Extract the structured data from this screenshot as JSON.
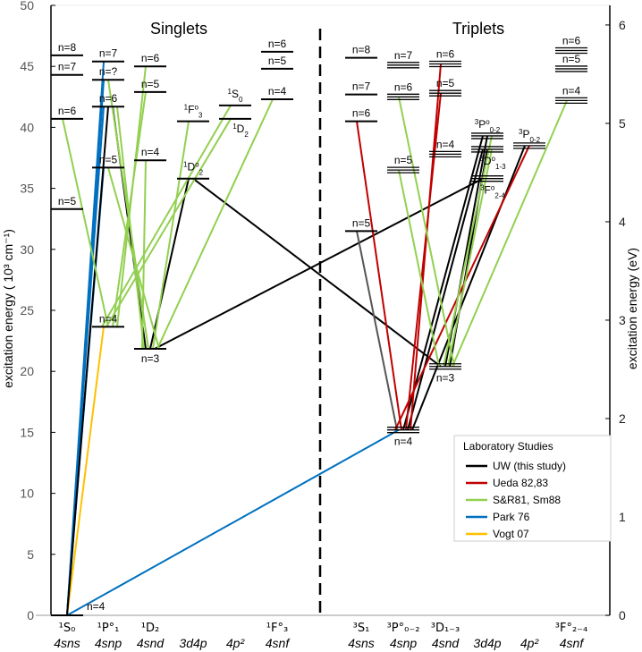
{
  "chart_data": {
    "type": "grotrian-diagram",
    "titles": {
      "singlets": "Singlets",
      "triplets": "Triplets"
    },
    "ylabel_left": "excitation energy ( 10³ cm⁻¹)",
    "ylabel_right": "excitation energy (eV)",
    "ylim_left": [
      0,
      50
    ],
    "yticks_left": [
      0,
      5,
      10,
      15,
      20,
      25,
      30,
      35,
      40,
      45,
      50
    ],
    "yticks_right": [
      0,
      1,
      2,
      3,
      4,
      5,
      6
    ],
    "columns": [
      {
        "id": "s_sns",
        "config": "4sns",
        "term": "¹S₀",
        "term_parts": [
          "1",
          "S",
          "",
          "0"
        ]
      },
      {
        "id": "s_snp",
        "config": "4snp",
        "term": "¹P°₁",
        "term_parts": [
          "1",
          "P",
          "o",
          "1"
        ]
      },
      {
        "id": "s_snd",
        "config": "4snd",
        "term": "¹D₂",
        "term_parts": [
          "1",
          "D",
          "",
          "2"
        ]
      },
      {
        "id": "s_d4p",
        "config": "3d4p",
        "term": "",
        "term_parts": [
          "",
          "",
          "",
          ""
        ]
      },
      {
        "id": "s_p2",
        "config": "4p²",
        "term": "",
        "term_parts": [
          "",
          "",
          "",
          ""
        ]
      },
      {
        "id": "s_snf",
        "config": "4snf",
        "term": "¹F°₃",
        "term_parts": [
          "1",
          "F",
          "o",
          "3"
        ]
      },
      {
        "id": "t_sns",
        "config": "4sns",
        "term": "³S₁",
        "term_parts": [
          "3",
          "S",
          "",
          "1"
        ]
      },
      {
        "id": "t_snp",
        "config": "4snp",
        "term": "³P°₀₋₂",
        "term_parts": [
          "3",
          "P",
          "o",
          "0-2"
        ]
      },
      {
        "id": "t_snd",
        "config": "4snd",
        "term": "³D₁₋₃",
        "term_parts": [
          "3",
          "D",
          "",
          "1-3"
        ]
      },
      {
        "id": "t_d4p",
        "config": "3d4p",
        "term": "",
        "term_parts": [
          "",
          "",
          "",
          ""
        ]
      },
      {
        "id": "t_p2",
        "config": "4p²",
        "term": "",
        "term_parts": [
          "",
          "",
          "",
          ""
        ]
      },
      {
        "id": "t_snf",
        "config": "4snf",
        "term": "³F°₂₋₄",
        "term_parts": [
          "3",
          "F",
          "o",
          "2-4"
        ]
      }
    ],
    "levels": [
      {
        "id": "s_sns_4",
        "col": "s_sns",
        "energy": 0,
        "label": "n=4",
        "pos": "right"
      },
      {
        "id": "s_sns_5",
        "col": "s_sns",
        "energy": 33.3,
        "label": "n=5"
      },
      {
        "id": "s_sns_6",
        "col": "s_sns",
        "energy": 40.7,
        "label": "n=6"
      },
      {
        "id": "s_sns_7",
        "col": "s_sns",
        "energy": 44.3,
        "label": "n=7"
      },
      {
        "id": "s_sns_8",
        "col": "s_sns",
        "energy": 45.9,
        "label": "n=8"
      },
      {
        "id": "s_snp_4",
        "col": "s_snp",
        "energy": 23.65,
        "label": "n=4"
      },
      {
        "id": "s_snp_5",
        "col": "s_snp",
        "energy": 36.7,
        "label": "n=5"
      },
      {
        "id": "s_snp_6",
        "col": "s_snp",
        "energy": 41.7,
        "label": "n=6"
      },
      {
        "id": "s_snp_q",
        "col": "s_snp",
        "energy": 43.9,
        "label": "n=?"
      },
      {
        "id": "s_snp_7",
        "col": "s_snp",
        "energy": 45.4,
        "label": "n=7"
      },
      {
        "id": "s_snd_3",
        "col": "s_snd",
        "energy": 21.85,
        "label": "n=3",
        "pos": "below"
      },
      {
        "id": "s_snd_4",
        "col": "s_snd",
        "energy": 37.3,
        "label": "n=4"
      },
      {
        "id": "s_snd_5",
        "col": "s_snd",
        "energy": 42.9,
        "label": "n=5"
      },
      {
        "id": "s_snd_6",
        "col": "s_snd",
        "energy": 45.0,
        "label": "n=6"
      },
      {
        "id": "s_d4p_1F",
        "col": "s_d4p",
        "energy": 40.5,
        "label": "",
        "term_parts": [
          "1",
          "F",
          "o",
          "3"
        ]
      },
      {
        "id": "s_d4p_1D",
        "col": "s_d4p",
        "energy": 35.8,
        "label": "",
        "term_parts": [
          "1",
          "D",
          "o",
          "2"
        ]
      },
      {
        "id": "s_p2_1D",
        "col": "s_p2",
        "energy": 40.7,
        "label": "",
        "term_parts": [
          "1",
          "D",
          "",
          "2"
        ],
        "pos": "below"
      },
      {
        "id": "s_p2_1S",
        "col": "s_p2",
        "energy": 41.8,
        "label": "",
        "term_parts": [
          "1",
          "S",
          "",
          "0"
        ]
      },
      {
        "id": "s_snf_4",
        "col": "s_snf",
        "energy": 42.3,
        "label": "n=4"
      },
      {
        "id": "s_snf_5",
        "col": "s_snf",
        "energy": 44.8,
        "label": "n=5"
      },
      {
        "id": "s_snf_6",
        "col": "s_snf",
        "energy": 46.2,
        "label": "n=6"
      },
      {
        "id": "t_sns_5",
        "col": "t_sns",
        "energy": 31.5,
        "label": "n=5"
      },
      {
        "id": "t_sns_6",
        "col": "t_sns",
        "energy": 40.5,
        "label": "n=6"
      },
      {
        "id": "t_sns_7",
        "col": "t_sns",
        "energy": 42.7,
        "label": "n=7"
      },
      {
        "id": "t_sns_8",
        "col": "t_sns",
        "energy": 45.7,
        "label": "n=8"
      },
      {
        "id": "t_snp_4",
        "col": "t_snp",
        "energy": 15.2,
        "label": "n=4",
        "pos": "below",
        "multiplet": true
      },
      {
        "id": "t_snp_5",
        "col": "t_snp",
        "energy": 36.5,
        "label": "n=5",
        "multiplet": true
      },
      {
        "id": "t_snp_6",
        "col": "t_snp",
        "energy": 42.5,
        "label": "n=6",
        "multiplet": true
      },
      {
        "id": "t_snp_7",
        "col": "t_snp",
        "energy": 45.1,
        "label": "n=7",
        "multiplet": true
      },
      {
        "id": "t_snd_3",
        "col": "t_snd",
        "energy": 20.4,
        "label": "n=3",
        "pos": "below",
        "multiplet": true
      },
      {
        "id": "t_snd_4",
        "col": "t_snd",
        "energy": 37.8,
        "label": "n=4",
        "multiplet": true
      },
      {
        "id": "t_snd_5",
        "col": "t_snd",
        "energy": 42.8,
        "label": "n=5",
        "multiplet": true
      },
      {
        "id": "t_snd_6",
        "col": "t_snd",
        "energy": 45.2,
        "label": "n=6",
        "multiplet": true
      },
      {
        "id": "t_d4p_3P",
        "col": "t_d4p",
        "energy": 39.3,
        "label": "",
        "term_parts": [
          "3",
          "P",
          "o",
          "0-2"
        ],
        "multiplet": true
      },
      {
        "id": "t_d4p_3D",
        "col": "t_d4p",
        "energy": 38.2,
        "label": "",
        "term_parts": [
          "3",
          "D",
          "o",
          "1-3"
        ],
        "pos": "below",
        "multiplet": true
      },
      {
        "id": "t_d4p_3F",
        "col": "t_d4p",
        "energy": 35.8,
        "label": "",
        "term_parts": [
          "3",
          "F",
          "o",
          "2-4"
        ],
        "pos": "below",
        "multiplet": true
      },
      {
        "id": "t_p2_3P",
        "col": "t_p2",
        "energy": 38.5,
        "label": "",
        "term_parts": [
          "3",
          "P",
          "",
          "0-2"
        ],
        "multiplet": true
      },
      {
        "id": "t_snf_4",
        "col": "t_snf",
        "energy": 42.2,
        "label": "n=4",
        "multiplet": true
      },
      {
        "id": "t_snf_5",
        "col": "t_snf",
        "energy": 44.8,
        "label": "n=5",
        "multiplet": true
      },
      {
        "id": "t_snf_6",
        "col": "t_snf",
        "energy": 46.3,
        "label": "n=6",
        "multiplet": true
      }
    ],
    "series": [
      {
        "key": "uw",
        "name": "UW (this study)",
        "color": "#000000"
      },
      {
        "key": "ueda",
        "name": "Ueda 82,83",
        "color": "#c00000"
      },
      {
        "key": "sr",
        "name": "S&R81, Sm88",
        "color": "#92d050"
      },
      {
        "key": "park",
        "name": "Park 76",
        "color": "#0070c0"
      },
      {
        "key": "vogt",
        "name": "Vogt 07",
        "color": "#ffc000"
      }
    ],
    "unlisted_color": "#555555",
    "legend_title": "Laboratory Studies",
    "legend_position": "bottom-right",
    "transitions": [
      {
        "s": "park",
        "from": "s_sns_4",
        "to": "s_snp_5"
      },
      {
        "s": "park",
        "from": "s_sns_4",
        "to": "s_snp_6"
      },
      {
        "s": "park",
        "from": "s_sns_4",
        "to": "s_snp_q"
      },
      {
        "s": "park",
        "from": "s_sns_4",
        "to": "s_snp_7"
      },
      {
        "s": "park",
        "from": "s_sns_4",
        "to": "t_snp_4"
      },
      {
        "s": "vogt",
        "from": "s_sns_4",
        "to": "s_snp_4"
      },
      {
        "s": "uw",
        "from": "s_sns_4",
        "to": "s_snp_6"
      },
      {
        "s": "uw",
        "from": "s_snp_6",
        "to": "s_snd_3"
      },
      {
        "s": "uw",
        "from": "s_snd_3",
        "to": "s_d4p_1D"
      },
      {
        "s": "uw",
        "from": "s_d4p_1D",
        "to": "t_snd_3"
      },
      {
        "s": "uw",
        "from": "s_snd_3",
        "to": "t_d4p_3F"
      },
      {
        "s": "uw",
        "from": "t_snp_4",
        "to": "t_d4p_3P"
      },
      {
        "s": "uw",
        "from": "t_snp_4",
        "to": "t_d4p_3D"
      },
      {
        "s": "uw",
        "from": "t_snd_3",
        "to": "t_d4p_3P"
      },
      {
        "s": "uw",
        "from": "t_snd_3",
        "to": "t_d4p_3D"
      },
      {
        "s": "uw",
        "from": "t_snp_4",
        "to": "t_p2_3P"
      },
      {
        "s": "other",
        "from": "t_sns_5",
        "to": "t_snp_4"
      },
      {
        "s": "ueda",
        "from": "t_sns_6",
        "to": "t_snp_4"
      },
      {
        "s": "ueda",
        "from": "t_snp_4",
        "to": "t_snd_5"
      },
      {
        "s": "ueda",
        "from": "t_snp_4",
        "to": "t_snd_6"
      },
      {
        "s": "ueda",
        "from": "t_snp_4",
        "to": "t_p2_3P"
      },
      {
        "s": "sr",
        "from": "s_sns_6",
        "to": "s_snp_4"
      },
      {
        "s": "sr",
        "from": "s_snp_4",
        "to": "s_snd_5"
      },
      {
        "s": "sr",
        "from": "s_snp_4",
        "to": "s_snd_6"
      },
      {
        "s": "sr",
        "from": "s_snp_4",
        "to": "s_p2_1S"
      },
      {
        "s": "sr",
        "from": "s_snp_4",
        "to": "s_p2_1D"
      },
      {
        "s": "sr",
        "from": "s_snd_3",
        "to": "s_snp_5"
      },
      {
        "s": "sr",
        "from": "s_snd_3",
        "to": "s_snp_6"
      },
      {
        "s": "sr",
        "from": "s_snd_3",
        "to": "s_snp_q"
      },
      {
        "s": "sr",
        "from": "s_snd_3",
        "to": "s_d4p_1F"
      },
      {
        "s": "sr",
        "from": "s_snd_3",
        "to": "s_snf_4"
      },
      {
        "s": "sr",
        "from": "s_snd_3",
        "to": "s_snd_4"
      },
      {
        "s": "sr",
        "from": "t_snp_6",
        "to": "t_snd_3"
      },
      {
        "s": "sr",
        "from": "t_snp_5",
        "to": "t_snd_3"
      },
      {
        "s": "sr",
        "from": "t_snd_3",
        "to": "t_d4p_3P"
      },
      {
        "s": "sr",
        "from": "t_snd_3",
        "to": "t_d4p_3D"
      },
      {
        "s": "sr",
        "from": "t_snd_3",
        "to": "t_snf_4"
      }
    ]
  }
}
